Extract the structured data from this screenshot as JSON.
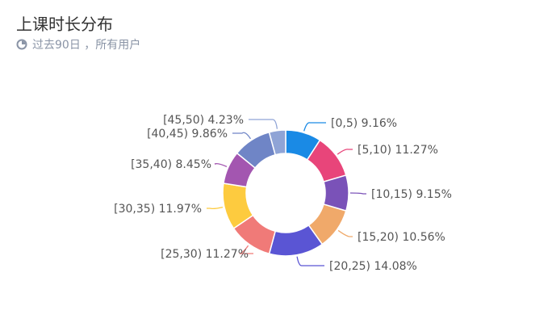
{
  "header": {
    "title": "上课时长分布",
    "subtitle": "过去90日 ，所有用户",
    "icon": "pie-clock-icon"
  },
  "chart_data": {
    "type": "pie",
    "donut": true,
    "title": "上课时长分布",
    "legend": "none",
    "categories": [
      "[0,5)",
      "[5,10)",
      "[10,15)",
      "[15,20)",
      "[20,25)",
      "[25,30)",
      "[30,35)",
      "[35,40)",
      "[40,45)",
      "[45,50)"
    ],
    "values": [
      9.16,
      11.27,
      9.15,
      10.56,
      14.08,
      11.27,
      11.97,
      8.45,
      9.86,
      4.23
    ],
    "labels": [
      "9.16%",
      "11.27%",
      "9.15%",
      "10.56%",
      "14.08%",
      "11.27%",
      "11.97%",
      "8.45%",
      "9.86%",
      "4.23%"
    ],
    "colors": [
      "#1a8ae5",
      "#e8457a",
      "#7a52b8",
      "#f0a96a",
      "#5a55d4",
      "#f07a78",
      "#fdcb3f",
      "#a356b0",
      "#6f85c6",
      "#8fa4d6"
    ]
  }
}
